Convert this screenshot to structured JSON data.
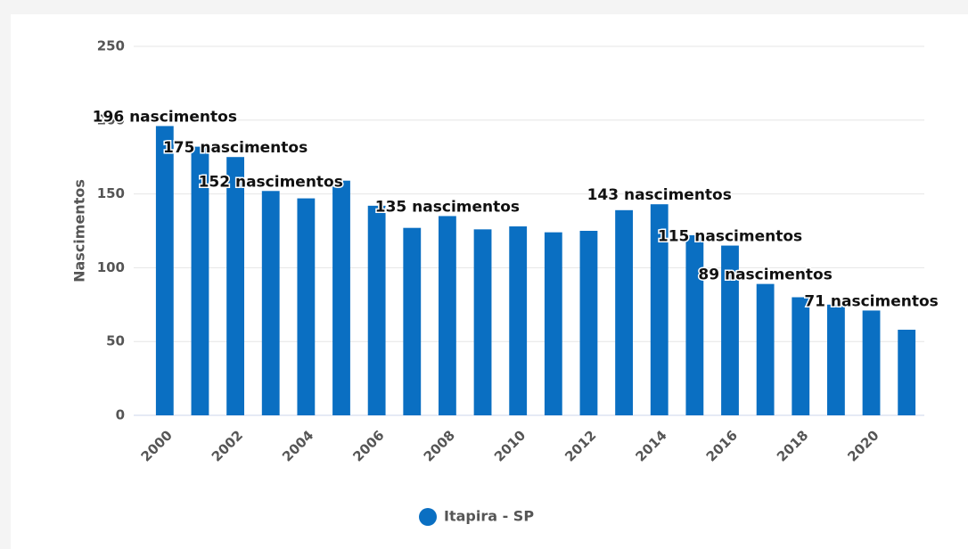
{
  "chart_data": {
    "type": "bar",
    "y_label": "Nascimentos",
    "categories": [
      "2000",
      null,
      "2002",
      null,
      "2004",
      null,
      "2006",
      null,
      "2008",
      null,
      "2010",
      null,
      "2012",
      null,
      "2014",
      null,
      "2016",
      null,
      "2018",
      null,
      "2020",
      null
    ],
    "series": [
      {
        "name": "Itapira - SP",
        "color": "#0a6fc2",
        "values": [
          196,
          182,
          175,
          152,
          147,
          159,
          142,
          127,
          135,
          126,
          128,
          124,
          125,
          139,
          143,
          122,
          115,
          89,
          80,
          75,
          71,
          58
        ],
        "value_labels": [
          "196 nascimentos",
          null,
          "175 nascimentos",
          "152 nascimentos",
          null,
          null,
          null,
          null,
          "135 nascimentos",
          null,
          null,
          null,
          null,
          null,
          "143 nascimentos",
          null,
          "115 nascimentos",
          "89 nascimentos",
          null,
          null,
          "71 nascimentos",
          null
        ]
      }
    ],
    "ylim": [
      0,
      250
    ],
    "yticks": [
      0,
      50,
      100,
      150,
      200,
      250
    ],
    "grid": true,
    "legend": "bottom"
  }
}
